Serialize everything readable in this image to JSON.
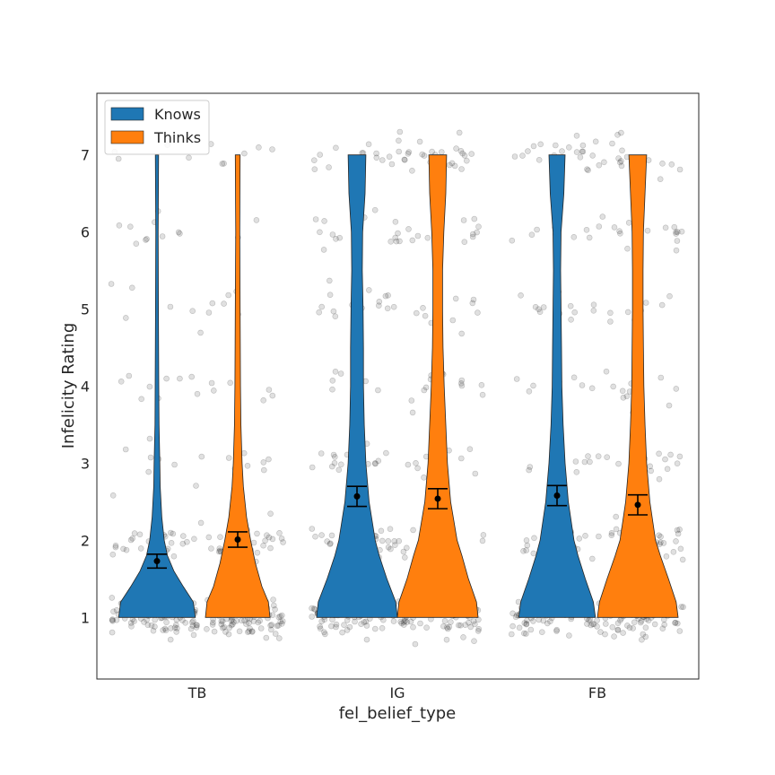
{
  "chart_data": {
    "type": "violin",
    "xlabel": "fel_belief_type",
    "ylabel": "Infelicity Rating",
    "categories": [
      "TB",
      "IG",
      "FB"
    ],
    "y_ticks": [
      1,
      2,
      3,
      4,
      5,
      6,
      7
    ],
    "ylim": [
      0.2,
      7.8
    ],
    "grid": false,
    "legend_position": "top-left",
    "series": [
      {
        "name": "Knows",
        "color": "#1f77b4",
        "means": [
          1.73,
          2.57,
          2.58
        ],
        "ci_low": [
          1.64,
          2.44,
          2.45
        ],
        "ci_high": [
          1.82,
          2.7,
          2.71
        ],
        "density_half_widths": [
          [
            [
              1.0,
              0.95
            ],
            [
              1.2,
              0.9
            ],
            [
              1.4,
              0.65
            ],
            [
              1.6,
              0.42
            ],
            [
              1.8,
              0.26
            ],
            [
              2.0,
              0.18
            ],
            [
              2.3,
              0.12
            ],
            [
              2.7,
              0.08
            ],
            [
              3.0,
              0.07
            ],
            [
              3.5,
              0.05
            ],
            [
              4.0,
              0.045
            ],
            [
              5.0,
              0.035
            ],
            [
              6.0,
              0.03
            ],
            [
              7.0,
              0.04
            ]
          ],
          [
            [
              1.0,
              1.0
            ],
            [
              1.2,
              0.96
            ],
            [
              1.5,
              0.74
            ],
            [
              1.8,
              0.55
            ],
            [
              2.0,
              0.45
            ],
            [
              2.5,
              0.3
            ],
            [
              3.0,
              0.22
            ],
            [
              3.5,
              0.18
            ],
            [
              4.0,
              0.16
            ],
            [
              4.5,
              0.16
            ],
            [
              5.0,
              0.15
            ],
            [
              5.5,
              0.13
            ],
            [
              6.0,
              0.14
            ],
            [
              6.5,
              0.2
            ],
            [
              7.0,
              0.22
            ]
          ],
          [
            [
              1.0,
              0.95
            ],
            [
              1.2,
              0.9
            ],
            [
              1.5,
              0.7
            ],
            [
              1.8,
              0.52
            ],
            [
              2.0,
              0.42
            ],
            [
              2.5,
              0.28
            ],
            [
              3.0,
              0.2
            ],
            [
              3.5,
              0.15
            ],
            [
              4.0,
              0.12
            ],
            [
              4.5,
              0.11
            ],
            [
              5.0,
              0.1
            ],
            [
              5.5,
              0.09
            ],
            [
              6.0,
              0.1
            ],
            [
              6.5,
              0.17
            ],
            [
              7.0,
              0.2
            ]
          ]
        ]
      },
      {
        "name": "Thinks",
        "color": "#ff7f0e",
        "means": [
          2.01,
          2.54,
          2.46
        ],
        "ci_low": [
          1.91,
          2.41,
          2.33
        ],
        "ci_high": [
          2.11,
          2.67,
          2.59
        ],
        "density_half_widths": [
          [
            [
              1.0,
              0.8
            ],
            [
              1.2,
              0.76
            ],
            [
              1.4,
              0.6
            ],
            [
              1.7,
              0.44
            ],
            [
              2.0,
              0.32
            ],
            [
              2.3,
              0.22
            ],
            [
              2.7,
              0.14
            ],
            [
              3.0,
              0.11
            ],
            [
              3.5,
              0.08
            ],
            [
              4.0,
              0.07
            ],
            [
              5.0,
              0.06
            ],
            [
              6.0,
              0.05
            ],
            [
              7.0,
              0.06
            ]
          ],
          [
            [
              1.0,
              1.0
            ],
            [
              1.2,
              0.96
            ],
            [
              1.5,
              0.76
            ],
            [
              1.8,
              0.6
            ],
            [
              2.0,
              0.48
            ],
            [
              2.5,
              0.32
            ],
            [
              3.0,
              0.24
            ],
            [
              3.5,
              0.2
            ],
            [
              4.0,
              0.16
            ],
            [
              4.5,
              0.13
            ],
            [
              5.0,
              0.12
            ],
            [
              5.5,
              0.12
            ],
            [
              6.0,
              0.15
            ],
            [
              6.5,
              0.2
            ],
            [
              7.0,
              0.22
            ]
          ],
          [
            [
              1.0,
              1.0
            ],
            [
              1.2,
              0.95
            ],
            [
              1.5,
              0.76
            ],
            [
              1.8,
              0.56
            ],
            [
              2.0,
              0.44
            ],
            [
              2.5,
              0.3
            ],
            [
              3.0,
              0.22
            ],
            [
              3.5,
              0.18
            ],
            [
              4.0,
              0.15
            ],
            [
              4.5,
              0.14
            ],
            [
              5.0,
              0.13
            ],
            [
              5.5,
              0.13
            ],
            [
              6.0,
              0.14
            ],
            [
              6.5,
              0.18
            ],
            [
              7.0,
              0.22
            ]
          ]
        ]
      }
    ],
    "points_per_group_by_rating": [
      [
        [
          1,
          165
        ],
        [
          2,
          55
        ],
        [
          3,
          18
        ],
        [
          4,
          15
        ],
        [
          5,
          12
        ],
        [
          6,
          12
        ],
        [
          7,
          10
        ]
      ],
      [
        [
          1,
          150
        ],
        [
          2,
          55
        ],
        [
          3,
          25
        ],
        [
          4,
          22
        ],
        [
          5,
          25
        ],
        [
          6,
          30
        ],
        [
          7,
          40
        ]
      ],
      [
        [
          1,
          150
        ],
        [
          2,
          55
        ],
        [
          3,
          22
        ],
        [
          4,
          20
        ],
        [
          5,
          20
        ],
        [
          6,
          25
        ],
        [
          7,
          38
        ]
      ]
    ],
    "points_color": "#000000"
  }
}
